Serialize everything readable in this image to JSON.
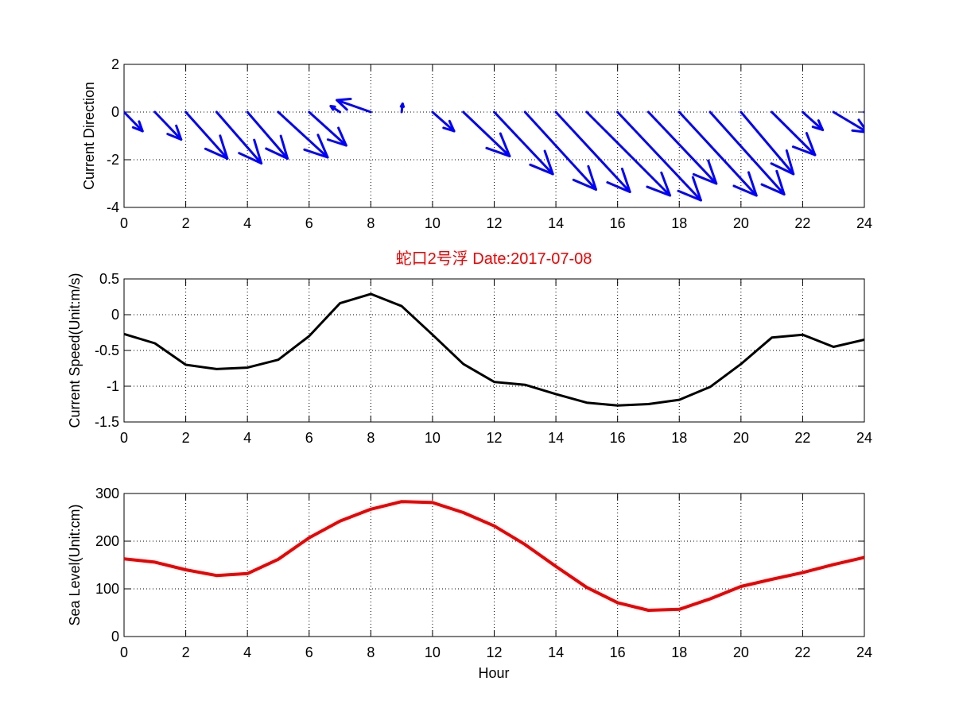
{
  "figure_title": "蛇口2号浮   Date:2017-07-08",
  "colors": {
    "background": "#ffffff",
    "axes": "#000000",
    "grid": "#000000",
    "direction_arrows": "#0000ff",
    "speed_line": "#000000",
    "sea_level_line": "#ee0000",
    "title": "#ee0000"
  },
  "chart_data": [
    {
      "id": "direction",
      "type": "quiver",
      "title": "",
      "xlabel": "",
      "ylabel": "Current Direction",
      "xlim": [
        0,
        24
      ],
      "ylim": [
        -4,
        2
      ],
      "xticks": [
        0,
        2,
        4,
        6,
        8,
        10,
        12,
        14,
        16,
        18,
        20,
        22,
        24
      ],
      "yticks": [
        -4,
        -2,
        0,
        2
      ],
      "grid": true,
      "x": [
        0,
        1,
        2,
        3,
        4,
        5,
        6,
        7,
        8,
        9,
        10,
        11,
        12,
        13,
        14,
        15,
        16,
        17,
        18,
        19,
        20,
        21,
        22,
        23,
        24
      ],
      "u": [
        0.6,
        0.85,
        1.35,
        1.45,
        1.3,
        1.6,
        1.2,
        -0.3,
        -1.1,
        0.03,
        0.7,
        1.5,
        1.9,
        2.3,
        2.4,
        2.7,
        2.7,
        2.2,
        2.5,
        2.4,
        1.7,
        1.4,
        0.65,
        1.1,
        1.2
      ],
      "v": [
        -0.8,
        -1.15,
        -1.95,
        -2.15,
        -1.95,
        -1.9,
        -1.4,
        0.25,
        0.5,
        0.35,
        -0.8,
        -1.85,
        -2.6,
        -3.25,
        -3.35,
        -3.5,
        -3.7,
        -3.0,
        -3.5,
        -3.45,
        -2.6,
        -1.8,
        -0.75,
        -0.85,
        -0.85
      ]
    },
    {
      "id": "speed",
      "type": "line",
      "title": "蛇口2号浮   Date:2017-07-08",
      "xlabel": "",
      "ylabel": "Current Speed(Unit:m/s)",
      "xlim": [
        0,
        24
      ],
      "ylim": [
        -1.5,
        0.5
      ],
      "xticks": [
        0,
        2,
        4,
        6,
        8,
        10,
        12,
        14,
        16,
        18,
        20,
        22,
        24
      ],
      "yticks": [
        -1.5,
        -1,
        -0.5,
        0,
        0.5
      ],
      "grid": true,
      "series": [
        {
          "x": [
            0,
            1,
            2,
            3,
            4,
            5,
            6,
            7,
            8,
            9,
            10,
            11,
            12,
            13,
            14,
            15,
            16,
            17,
            18,
            19,
            20,
            21,
            22,
            23,
            24
          ],
          "values": [
            -0.27,
            -0.4,
            -0.7,
            -0.76,
            -0.74,
            -0.63,
            -0.3,
            0.16,
            0.29,
            0.12,
            -0.28,
            -0.69,
            -0.94,
            -0.98,
            -1.11,
            -1.23,
            -1.27,
            -1.25,
            -1.19,
            -1.01,
            -0.69,
            -0.32,
            -0.28,
            -0.45,
            -0.35
          ]
        }
      ]
    },
    {
      "id": "sea_level",
      "type": "line",
      "title": "",
      "xlabel": "Hour",
      "ylabel": "Sea Level(Unit:cm)",
      "xlim": [
        0,
        24
      ],
      "ylim": [
        0,
        300
      ],
      "xticks": [
        0,
        2,
        4,
        6,
        8,
        10,
        12,
        14,
        16,
        18,
        20,
        22,
        24
      ],
      "yticks": [
        0,
        100,
        200,
        300
      ],
      "grid": true,
      "series": [
        {
          "x": [
            0,
            1,
            2,
            3,
            4,
            5,
            6,
            7,
            8,
            9,
            10,
            11,
            12,
            13,
            14,
            15,
            16,
            17,
            18,
            19,
            20,
            21,
            22,
            23,
            24
          ],
          "values": [
            163,
            156,
            140,
            128,
            132,
            162,
            207,
            242,
            267,
            283,
            281,
            260,
            232,
            193,
            147,
            103,
            71,
            55,
            57,
            79,
            105,
            120,
            134,
            151,
            166
          ]
        }
      ]
    }
  ]
}
